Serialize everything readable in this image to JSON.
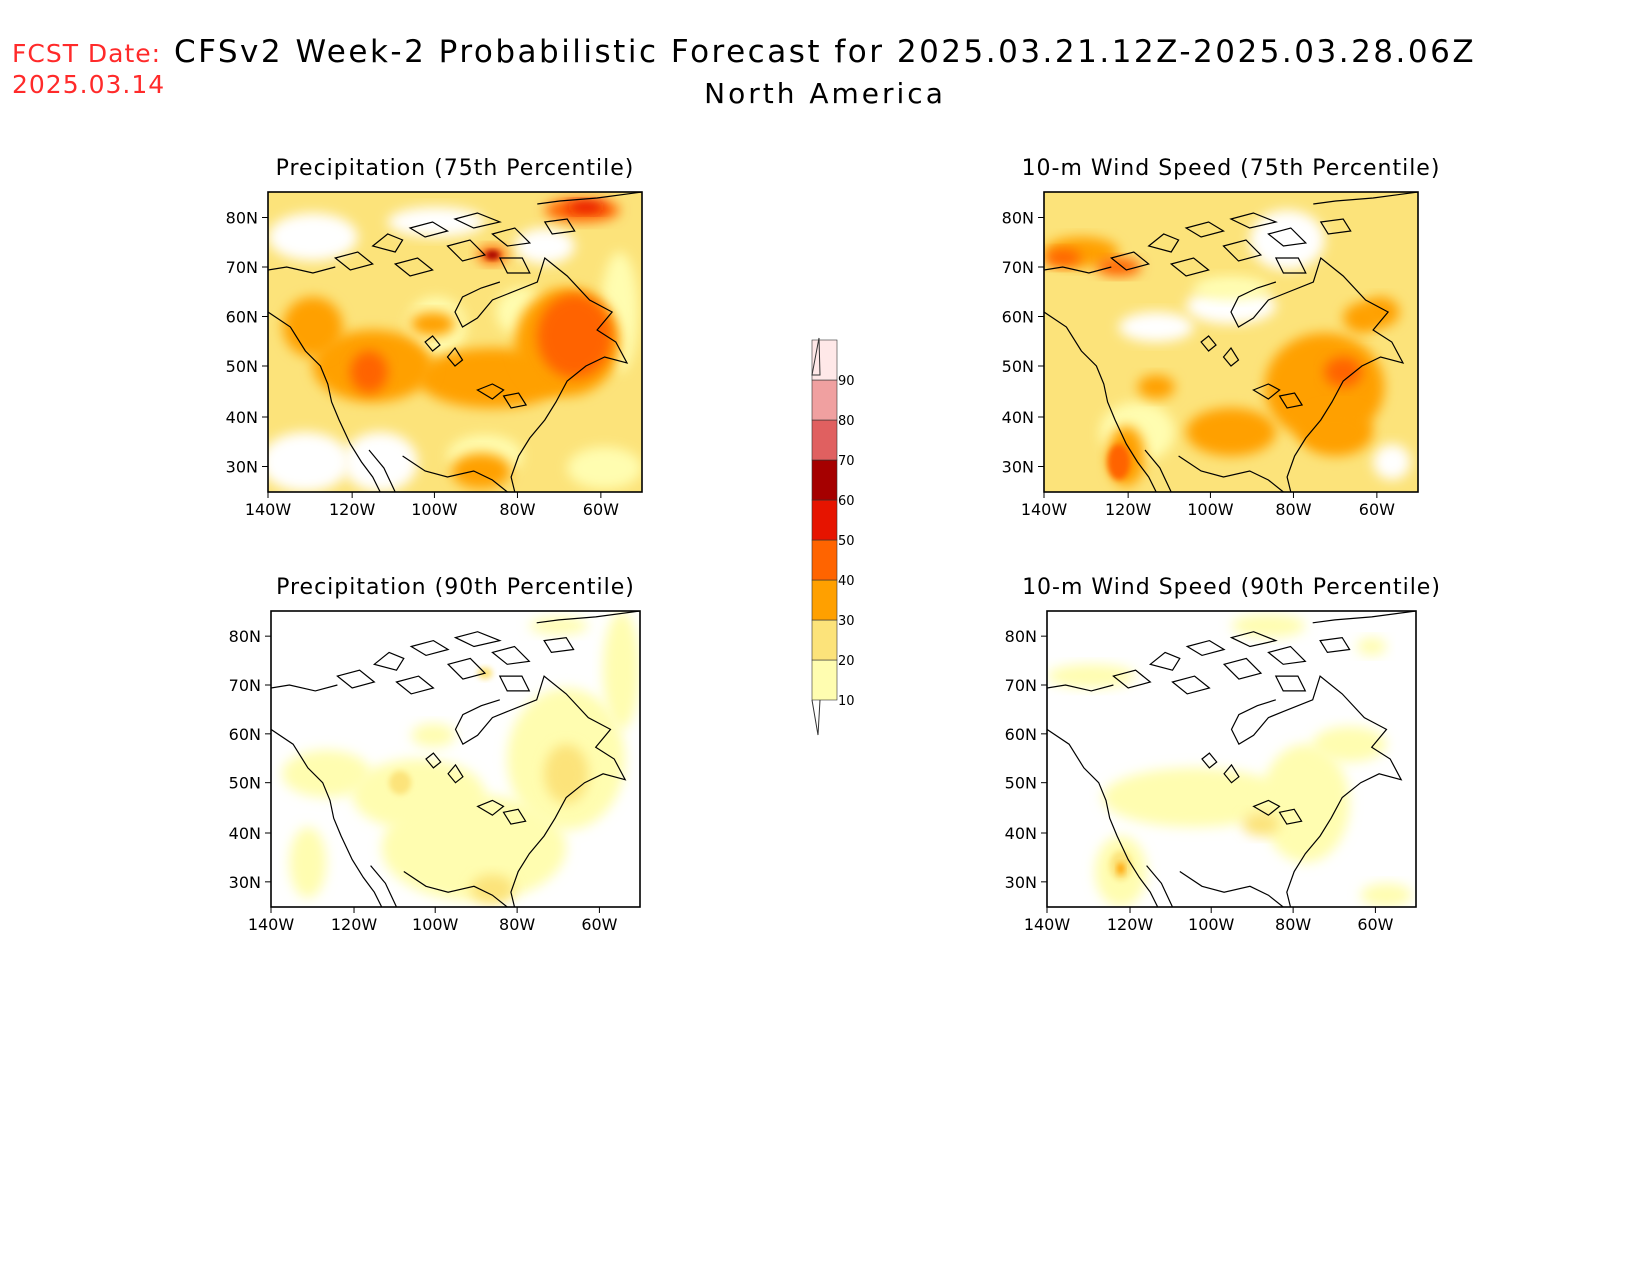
{
  "header": {
    "fcst_label": "FCST Date:",
    "fcst_date": "2025.03.14",
    "title": "CFSv2 Week-2 Probabilistic Forecast for 2025.03.21.12Z-2025.03.28.06Z",
    "subtitle": "North America"
  },
  "panels": [
    {
      "title": "Precipitation (75th Percentile)"
    },
    {
      "title": "10-m Wind Speed (75th Percentile)"
    },
    {
      "title": "Precipitation (90th Percentile)"
    },
    {
      "title": "10-m Wind Speed (90th Percentile)"
    }
  ],
  "axes": {
    "lat_labels": [
      "80N",
      "70N",
      "60N",
      "50N",
      "40N",
      "30N"
    ],
    "lon_labels": [
      "140W",
      "120W",
      "100W",
      "80W",
      "60W"
    ]
  },
  "colorbar": {
    "labels": [
      "10",
      "20",
      "30",
      "40",
      "50",
      "60",
      "70",
      "80",
      "90"
    ],
    "colors": [
      "#fffdb0",
      "#fce37a",
      "#ffa000",
      "#ff6400",
      "#e61400",
      "#a50000",
      "#e06060",
      "#f0a0a0",
      "#ffe8e8"
    ]
  }
}
